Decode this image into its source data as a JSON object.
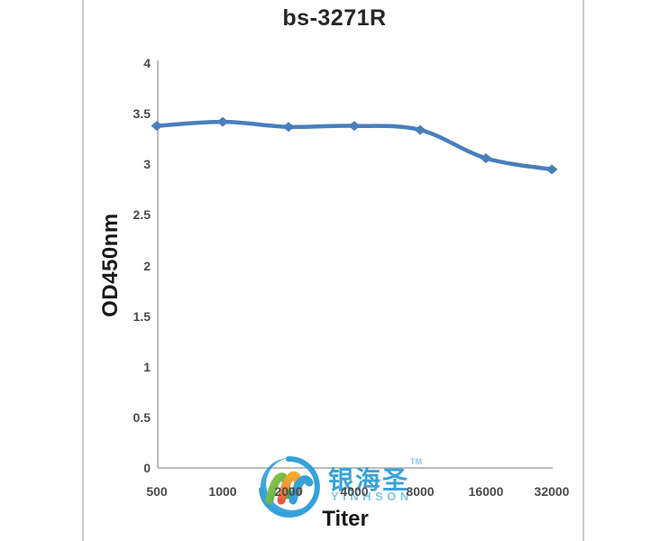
{
  "chart_data": {
    "type": "line",
    "title": "bs-3271R",
    "xlabel": "Titer",
    "ylabel": "OD450nm",
    "x_categories": [
      "500",
      "1000",
      "2000",
      "4000",
      "8000",
      "16000",
      "32000"
    ],
    "series": [
      {
        "name": "bs-3271R",
        "values": [
          3.38,
          3.42,
          3.37,
          3.38,
          3.34,
          3.06,
          2.95
        ]
      }
    ],
    "ylim": [
      0,
      4
    ],
    "ytick_step": 0.5,
    "grid": false,
    "legend": "none",
    "line_color": "#4a7ebb",
    "marker": "diamond",
    "axis_color": "#a6a6a6",
    "tick_label_color": "#4a4a4a"
  },
  "watermark": {
    "cn_text": "银海圣",
    "tm": "TM",
    "latin_text": "YINHSON",
    "brand_blue": "#2f9fd6",
    "latin_color": "#7fc4e4",
    "logo_colors": {
      "ring": "#2b9cd8",
      "wave_green": "#46a94b",
      "wave_orange": "#f6a623",
      "wave_red": "#e24b3b",
      "wave_blue": "#2b9cd8"
    }
  }
}
